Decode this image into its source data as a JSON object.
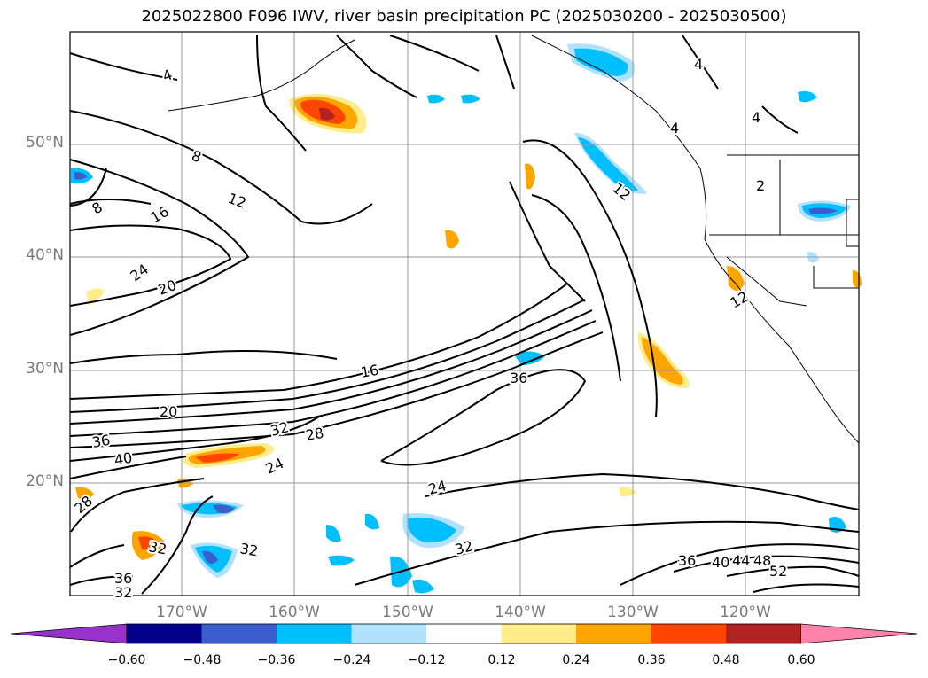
{
  "title": "2025022800 F096 IWV, river basin precipitation PC (2025030200 - 2025030500)",
  "map": {
    "lat_labels": [
      "50°N",
      "40°N",
      "30°N",
      "20°N"
    ],
    "lon_labels": [
      "170°W",
      "160°W",
      "150°W",
      "140°W",
      "130°W",
      "120°W"
    ],
    "contour_labels": [
      "4",
      "8",
      "8",
      "12",
      "16",
      "24",
      "20",
      "16",
      "20",
      "36",
      "40",
      "28",
      "32",
      "24",
      "28",
      "32",
      "32",
      "36",
      "32",
      "24",
      "32",
      "36",
      "12",
      "4",
      "4",
      "4",
      "2",
      "12",
      "36",
      "40",
      "44",
      "48",
      "52"
    ],
    "colors": {
      "land_outline": "#000000",
      "grid": "#999999",
      "contour": "#000000"
    }
  },
  "colorbar": {
    "ticks": [
      "−0.60",
      "−0.48",
      "−0.36",
      "−0.24",
      "−0.12",
      "0.12",
      "0.24",
      "0.36",
      "0.48",
      "0.60"
    ],
    "colors": [
      "#9932cc",
      "#00008b",
      "#3a5fcd",
      "#00bfff",
      "#b0e2ff",
      "#ffffff",
      "#ffec8b",
      "#ffa500",
      "#ff4500",
      "#b22222",
      "#ff82ab"
    ]
  }
}
